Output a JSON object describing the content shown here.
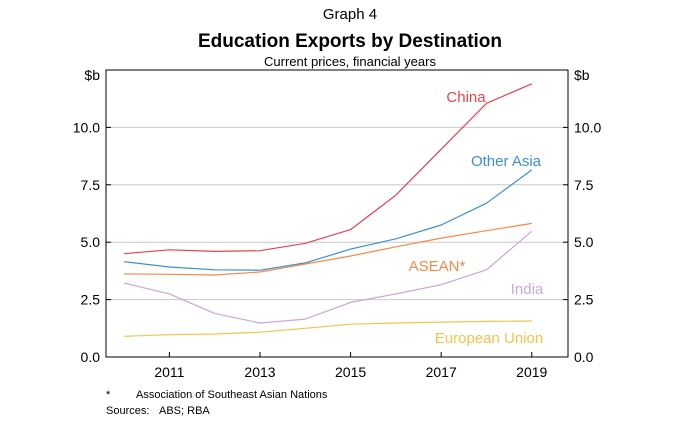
{
  "chart_data": {
    "type": "line",
    "graph_label": "Graph 4",
    "title": "Education Exports by Destination",
    "subtitle": "Current prices, financial years",
    "ylabel_left": "$b",
    "ylabel_right": "$b",
    "ylim": [
      0,
      12.5
    ],
    "yticks": [
      "0.0",
      "2.5",
      "5.0",
      "7.5",
      "10.0"
    ],
    "ytick_values": [
      0,
      2.5,
      5,
      7.5,
      10
    ],
    "xlim": [
      2009.6,
      2019.8
    ],
    "xticks": [
      "2011",
      "2013",
      "2015",
      "2017",
      "2019"
    ],
    "xtick_values": [
      2011,
      2013,
      2015,
      2017,
      2019
    ],
    "grid": "horizontal",
    "series": [
      {
        "name": "China",
        "color": "#e8424f",
        "x": [
          2010,
          2011,
          2012,
          2013,
          2014,
          2015,
          2016,
          2017,
          2018,
          2019
        ],
        "y": [
          4.5,
          4.67,
          4.6,
          4.63,
          4.95,
          5.55,
          7.05,
          9.05,
          11.05,
          11.9
        ]
      },
      {
        "name": "Other Asia",
        "color": "#3b90d2",
        "x": [
          2010,
          2011,
          2012,
          2013,
          2014,
          2015,
          2016,
          2017,
          2018,
          2019
        ],
        "y": [
          4.15,
          3.92,
          3.8,
          3.78,
          4.1,
          4.7,
          5.15,
          5.75,
          6.7,
          8.15
        ]
      },
      {
        "name": "ASEAN*",
        "color": "#f5894a",
        "x": [
          2010,
          2011,
          2012,
          2013,
          2014,
          2015,
          2016,
          2017,
          2018,
          2019
        ],
        "y": [
          3.62,
          3.6,
          3.57,
          3.7,
          4.05,
          4.4,
          4.8,
          5.18,
          5.5,
          5.82
        ]
      },
      {
        "name": "India",
        "color": "#c9a7d6",
        "x": [
          2010,
          2011,
          2012,
          2013,
          2014,
          2015,
          2016,
          2017,
          2018,
          2019
        ],
        "y": [
          3.22,
          2.75,
          1.9,
          1.48,
          1.65,
          2.38,
          2.75,
          3.15,
          3.8,
          5.48
        ]
      },
      {
        "name": "European Union",
        "color": "#f5c24a",
        "x": [
          2010,
          2011,
          2012,
          2013,
          2014,
          2015,
          2016,
          2017,
          2018,
          2019
        ],
        "y": [
          0.9,
          0.97,
          1.0,
          1.08,
          1.25,
          1.43,
          1.48,
          1.52,
          1.55,
          1.57
        ]
      }
    ]
  },
  "footnote": {
    "mark": "*",
    "text": "Association of Southeast Asian Nations"
  },
  "sources": {
    "label": "Sources:",
    "text": "ABS; RBA"
  }
}
